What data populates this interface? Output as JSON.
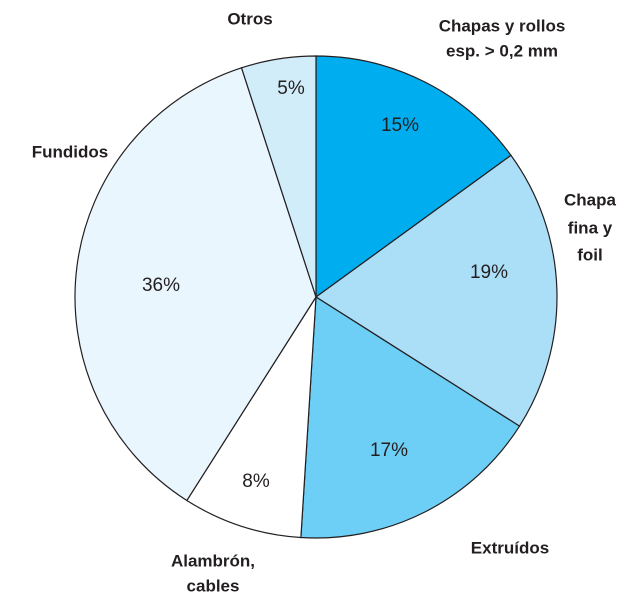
{
  "chart_data": {
    "type": "pie",
    "categories": [
      [
        "Chapas y rollos",
        "esp. > 0,2 mm"
      ],
      [
        "Chapa",
        "fina y",
        "foil"
      ],
      [
        "Extruídos"
      ],
      [
        "Alambrón,",
        "cables"
      ],
      [
        "Fundidos"
      ],
      [
        "Otros"
      ]
    ],
    "values": [
      15,
      19,
      17,
      8,
      36,
      5
    ],
    "value_labels": [
      "15%",
      "19%",
      "17%",
      "8%",
      "36%",
      "5%"
    ],
    "colors": [
      "#00aeef",
      "#abdff8",
      "#6dcff6",
      "#ffffff",
      "#e9f6fd",
      "#d2edfa"
    ]
  }
}
